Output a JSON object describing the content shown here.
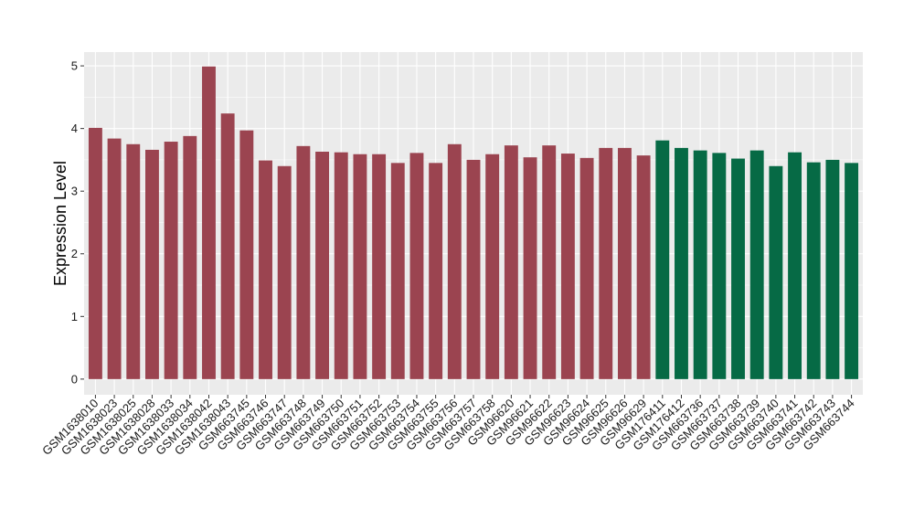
{
  "chart_data": {
    "type": "bar",
    "title": "",
    "xlabel": "",
    "ylabel": "Expression Level",
    "ylim": [
      -0.25,
      5.22
    ],
    "yticks": [
      0,
      1,
      2,
      3,
      4,
      5
    ],
    "grid": true,
    "background": "#ebebeb",
    "grid_color": "#ffffff",
    "categories": [
      "GSM1638010",
      "GSM1638023",
      "GSM1638025",
      "GSM1638028",
      "GSM1638033",
      "GSM1638034",
      "GSM1638042",
      "GSM1638043",
      "GSM663745",
      "GSM663746",
      "GSM663747",
      "GSM663748",
      "GSM663749",
      "GSM663750",
      "GSM663751",
      "GSM663752",
      "GSM663753",
      "GSM663754",
      "GSM663755",
      "GSM663756",
      "GSM663757",
      "GSM663758",
      "GSM96620",
      "GSM96621",
      "GSM96622",
      "GSM96623",
      "GSM96624",
      "GSM96625",
      "GSM96626",
      "GSM96629",
      "GSM176411",
      "GSM176412",
      "GSM663736",
      "GSM663737",
      "GSM663738",
      "GSM663739",
      "GSM663740",
      "GSM663741",
      "GSM663742",
      "GSM663743",
      "GSM663744"
    ],
    "values": [
      4.01,
      3.84,
      3.75,
      3.66,
      3.79,
      3.88,
      4.99,
      4.24,
      3.97,
      3.49,
      3.4,
      3.72,
      3.63,
      3.62,
      3.59,
      3.59,
      3.45,
      3.61,
      3.45,
      3.75,
      3.5,
      3.59,
      3.73,
      3.54,
      3.73,
      3.6,
      3.53,
      3.69,
      3.69,
      3.57,
      3.81,
      3.69,
      3.65,
      3.61,
      3.52,
      3.65,
      3.4,
      3.62,
      3.46,
      3.5,
      3.45
    ],
    "groups": [
      "a",
      "a",
      "a",
      "a",
      "a",
      "a",
      "a",
      "a",
      "a",
      "a",
      "a",
      "a",
      "a",
      "a",
      "a",
      "a",
      "a",
      "a",
      "a",
      "a",
      "a",
      "a",
      "a",
      "a",
      "a",
      "a",
      "a",
      "a",
      "a",
      "a",
      "b",
      "b",
      "b",
      "b",
      "b",
      "b",
      "b",
      "b",
      "b",
      "b",
      "b"
    ],
    "group_colors": {
      "a": "#9b4450",
      "b": "#066a45"
    }
  }
}
